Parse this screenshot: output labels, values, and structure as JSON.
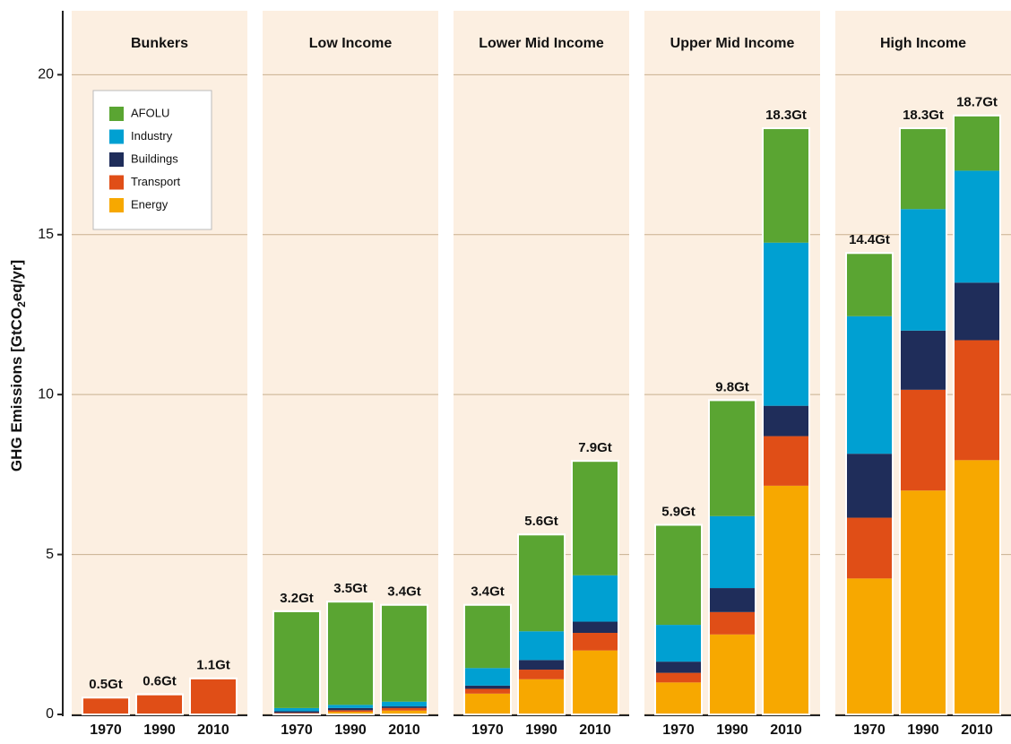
{
  "chart_data": {
    "type": "bar",
    "stacked": true,
    "ylabel": [
      "GHG Emissions [GtCO",
      "2",
      "eq/yr]"
    ],
    "ylim": [
      0,
      22
    ],
    "yticks": [
      0,
      5,
      10,
      15,
      20
    ],
    "grid": true,
    "legend_position": "upper left",
    "series": [
      {
        "name": "AFOLU",
        "color": "#5aa532"
      },
      {
        "name": "Industry",
        "color": "#00a0d2"
      },
      {
        "name": "Buildings",
        "color": "#1f2d5a"
      },
      {
        "name": "Transport",
        "color": "#e04e17"
      },
      {
        "name": "Energy",
        "color": "#f7a800"
      }
    ],
    "panels": [
      {
        "title": "Bunkers",
        "categories": [
          "1970",
          "1990",
          "2010"
        ],
        "values": [
          [
            0,
            0,
            0
          ],
          [
            0,
            0,
            0
          ],
          [
            0,
            0,
            0
          ],
          [
            0.5,
            0.6,
            1.1
          ],
          [
            0,
            0,
            0
          ]
        ],
        "totals": [
          0.5,
          0.6,
          1.1
        ],
        "total_labels": [
          "0.5Gt",
          "0.6Gt",
          "1.1Gt"
        ]
      },
      {
        "title": "Low Income",
        "categories": [
          "1970",
          "1990",
          "2010"
        ],
        "values": [
          [
            3.0,
            3.2,
            3.0
          ],
          [
            0.1,
            0.1,
            0.15
          ],
          [
            0.05,
            0.07,
            0.05
          ],
          [
            0.02,
            0.05,
            0.08
          ],
          [
            0.03,
            0.08,
            0.12
          ]
        ],
        "totals": [
          3.2,
          3.5,
          3.4
        ],
        "total_labels": [
          "3.2Gt",
          "3.5Gt",
          "3.4Gt"
        ]
      },
      {
        "title": "Lower Mid Income",
        "categories": [
          "1970",
          "1990",
          "2010"
        ],
        "values": [
          [
            1.95,
            3.0,
            3.55
          ],
          [
            0.55,
            0.9,
            1.45
          ],
          [
            0.1,
            0.3,
            0.35
          ],
          [
            0.15,
            0.3,
            0.55
          ],
          [
            0.65,
            1.1,
            2.0
          ]
        ],
        "totals": [
          3.4,
          5.6,
          7.9
        ],
        "total_labels": [
          "3.4Gt",
          "5.6Gt",
          "7.9Gt"
        ]
      },
      {
        "title": "Upper Mid Income",
        "categories": [
          "1970",
          "1990",
          "2010"
        ],
        "values": [
          [
            3.1,
            3.6,
            3.55
          ],
          [
            1.15,
            2.25,
            5.1
          ],
          [
            0.35,
            0.75,
            0.95
          ],
          [
            0.3,
            0.7,
            1.55
          ],
          [
            1.0,
            2.5,
            7.15
          ]
        ],
        "totals": [
          5.9,
          9.8,
          18.3
        ],
        "total_labels": [
          "5.9Gt",
          "9.8Gt",
          "18.3Gt"
        ]
      },
      {
        "title": "High Income",
        "categories": [
          "1970",
          "1990",
          "2010"
        ],
        "values": [
          [
            1.95,
            2.5,
            1.7
          ],
          [
            4.3,
            3.8,
            3.5
          ],
          [
            2.0,
            1.85,
            1.8
          ],
          [
            1.9,
            3.15,
            3.75
          ],
          [
            4.25,
            7.0,
            7.95
          ]
        ],
        "totals": [
          14.4,
          18.3,
          18.7
        ],
        "total_labels": [
          "14.4Gt",
          "18.3Gt",
          "18.7Gt"
        ]
      }
    ]
  }
}
